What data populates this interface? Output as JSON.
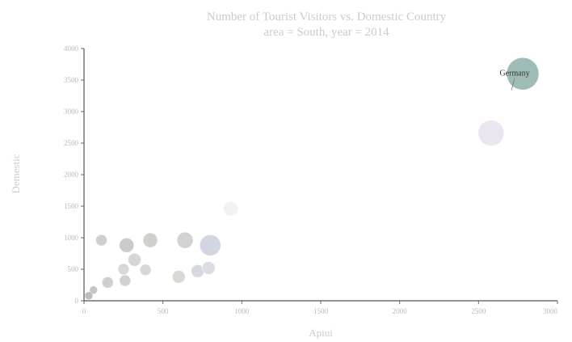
{
  "chart_data": {
    "type": "scatter",
    "title": "Number of Tourist Visitors vs. Domestic Country",
    "subtitle": "area = South, year = 2014",
    "xlabel": "Apiui",
    "ylabel": "Demestic",
    "xlim": [
      0,
      3000
    ],
    "ylim": [
      0,
      4000
    ],
    "xticks": [
      0,
      500,
      1000,
      1500,
      2000,
      2500,
      3000
    ],
    "xtick_labels": [
      "0",
      "500",
      "1000",
      "1500",
      "2000",
      "2500",
      "3000"
    ],
    "yticks": [
      0,
      500,
      1000,
      1500,
      2000,
      2500,
      3000,
      3500,
      4000
    ],
    "ytick_labels": [
      "0",
      "500",
      "1000",
      "1500",
      "2000",
      "2500",
      "3000",
      "3500",
      "4000"
    ],
    "annotation": {
      "label": "Germany",
      "x": 2770,
      "y": 3620
    },
    "points": [
      {
        "x": 2780,
        "y": 3600,
        "r": 20,
        "color": "#8fb0ac"
      },
      {
        "x": 2580,
        "y": 2660,
        "r": 16,
        "color": "#e6e1ee"
      },
      {
        "x": 930,
        "y": 1460,
        "r": 9,
        "color": "#f0f0f0"
      },
      {
        "x": 800,
        "y": 880,
        "r": 13,
        "color": "#c9cfdd"
      },
      {
        "x": 640,
        "y": 960,
        "r": 10,
        "color": "#c9cbc8"
      },
      {
        "x": 420,
        "y": 960,
        "r": 9,
        "color": "#c5c8c3"
      },
      {
        "x": 270,
        "y": 880,
        "r": 9,
        "color": "#c0c3be"
      },
      {
        "x": 110,
        "y": 960,
        "r": 7,
        "color": "#c5c8c3"
      },
      {
        "x": 320,
        "y": 650,
        "r": 8,
        "color": "#cdd0cb"
      },
      {
        "x": 250,
        "y": 500,
        "r": 7,
        "color": "#cfd2cd"
      },
      {
        "x": 390,
        "y": 490,
        "r": 7,
        "color": "#cfd2cd"
      },
      {
        "x": 260,
        "y": 320,
        "r": 7,
        "color": "#c7cac5"
      },
      {
        "x": 150,
        "y": 290,
        "r": 7,
        "color": "#c5c8c3"
      },
      {
        "x": 60,
        "y": 170,
        "r": 5,
        "color": "#b9bcb8"
      },
      {
        "x": 30,
        "y": 80,
        "r": 5,
        "color": "#b0b3af"
      },
      {
        "x": 600,
        "y": 380,
        "r": 8,
        "color": "#d0d3ce"
      },
      {
        "x": 720,
        "y": 470,
        "r": 8,
        "color": "#cfd3da"
      },
      {
        "x": 790,
        "y": 520,
        "r": 8,
        "color": "#d3d7de"
      }
    ]
  }
}
